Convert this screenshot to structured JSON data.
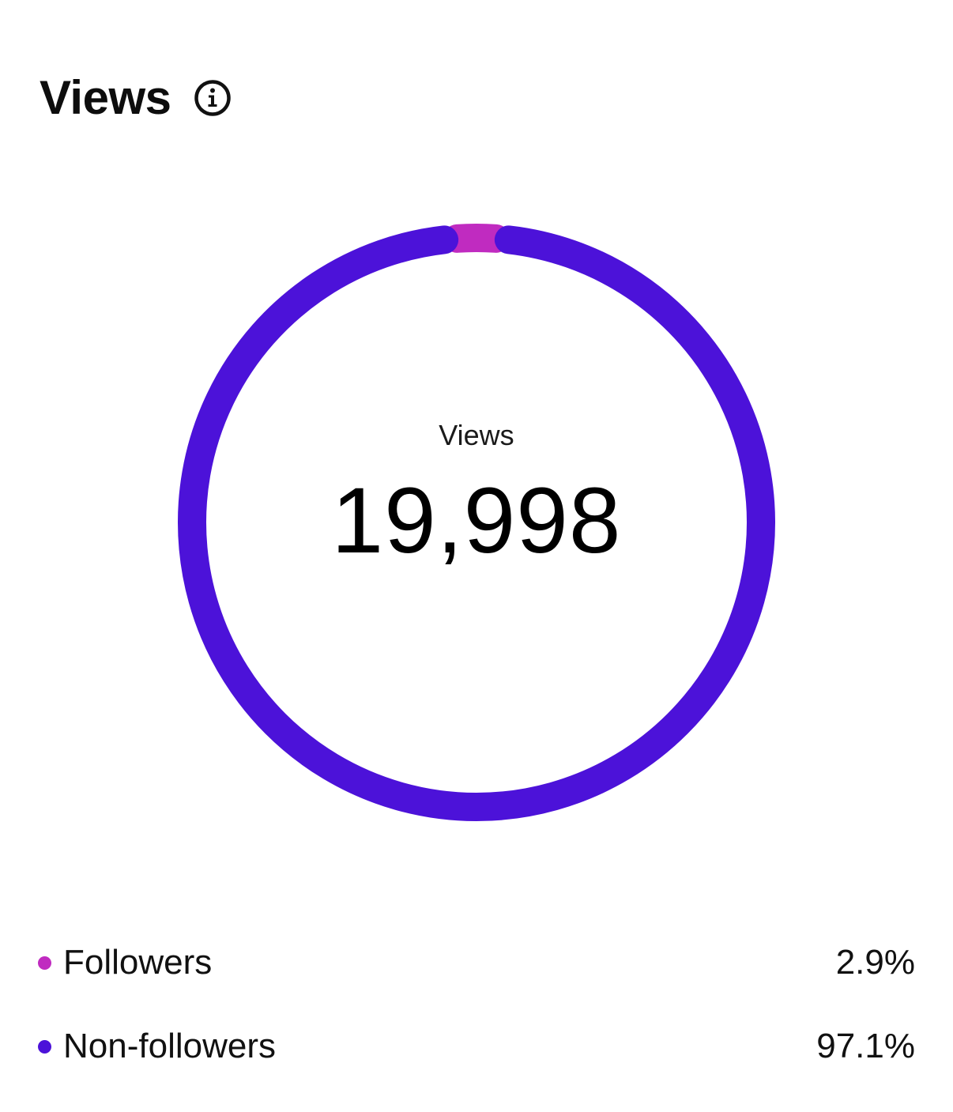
{
  "header": {
    "title": "Views",
    "info_icon": "info-circle-icon"
  },
  "chart_data": {
    "type": "pie",
    "center_label": "Views",
    "center_value": "19,998",
    "categories": [
      "Followers",
      "Non-followers"
    ],
    "values": [
      2.9,
      97.1
    ],
    "colors": [
      "#c02bc0",
      "#4c12d9"
    ]
  },
  "legend": {
    "items": [
      {
        "label": "Followers",
        "value": "2.9%",
        "color": "#c02bc0"
      },
      {
        "label": "Non-followers",
        "value": "97.1%",
        "color": "#4c12d9"
      }
    ]
  }
}
